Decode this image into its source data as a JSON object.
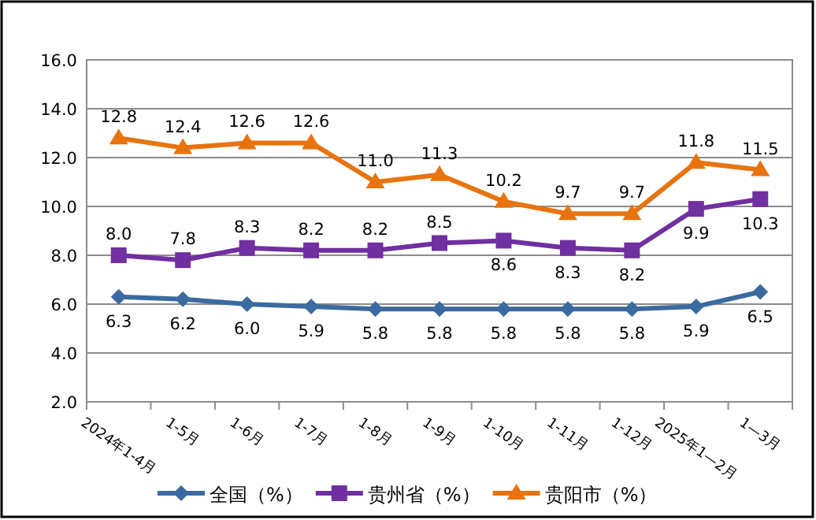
{
  "chart_data": {
    "type": "line",
    "categories": [
      "2024年1-4月",
      "1-5月",
      "1-6月",
      "1-7月",
      "1-8月",
      "1-9月",
      "1-10月",
      "1-11月",
      "1-12月",
      "2025年1—2月",
      "1—3月"
    ],
    "series": [
      {
        "name": "全国（%）",
        "color": "#3b6aa0",
        "marker": "diamond",
        "values": [
          6.3,
          6.2,
          6.0,
          5.9,
          5.8,
          5.8,
          5.8,
          5.8,
          5.8,
          5.9,
          6.5
        ],
        "value_labels": [
          "6.3",
          "6.2",
          "6.0",
          "5.9",
          "5.8",
          "5.8",
          "5.8",
          "5.8",
          "5.8",
          "5.9",
          "6.5"
        ]
      },
      {
        "name": "贵州省（%）",
        "color": "#7030a0",
        "marker": "square",
        "values": [
          8.0,
          7.8,
          8.3,
          8.2,
          8.2,
          8.5,
          8.6,
          8.3,
          8.2,
          9.9,
          10.3
        ],
        "value_labels": [
          "8.0",
          "7.8",
          "8.3",
          "8.2",
          "8.2",
          "8.5",
          "8.6",
          "8.3",
          "8.2",
          "9.9",
          "10.3"
        ]
      },
      {
        "name": "贵阳市（%）",
        "color": "#e8730f",
        "marker": "triangle",
        "values": [
          12.8,
          12.4,
          12.6,
          12.6,
          11.0,
          11.3,
          10.2,
          9.7,
          9.7,
          11.8,
          11.5
        ],
        "value_labels": [
          "12.8",
          "12.4",
          "12.6",
          "12.6",
          "11.0",
          "11.3",
          "10.2",
          "9.7",
          "9.7",
          "11.8",
          "11.5"
        ]
      }
    ],
    "ylim": [
      2,
      16
    ],
    "yticks": [
      {
        "value": 2,
        "label": "2.0"
      },
      {
        "value": 4,
        "label": "4.0"
      },
      {
        "value": 6,
        "label": "6.0"
      },
      {
        "value": 8,
        "label": "8.0"
      },
      {
        "value": 10,
        "label": "10.0"
      },
      {
        "value": 12,
        "label": "12.0"
      },
      {
        "value": 14,
        "label": "14.0"
      },
      {
        "value": 16,
        "label": "16.0"
      }
    ],
    "grid": "y",
    "legend": "bottom"
  }
}
